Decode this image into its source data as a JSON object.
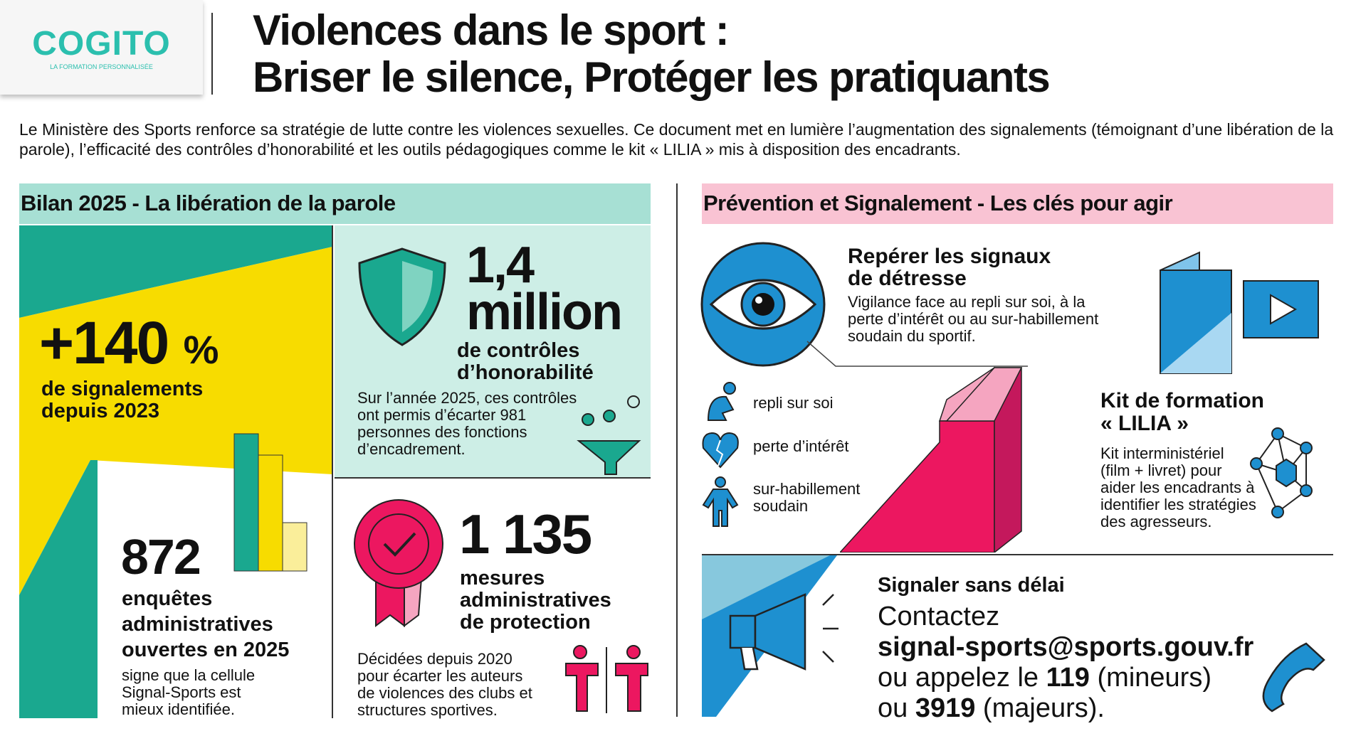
{
  "logo": {
    "name": "COGITO",
    "tagline": "LA FORMATION PERSONNALISÉE"
  },
  "header": {
    "title_line1": "Violences dans le sport :",
    "title_line2": "Briser le silence, Protéger les pratiquants",
    "intro": "Le Ministère des Sports renforce sa stratégie de lutte contre les violences sexuelles. Ce document met en lumière l’augmentation des signalements (témoignant d’une libération de la parole), l’efficacité des contrôles d’honorabilité et les outils pédagogiques comme le kit « LILIA » mis à disposition des encadrants."
  },
  "left": {
    "heading": "Bilan 2025 - La libération de la parole",
    "stat1": {
      "value": "+140",
      "unit": "%",
      "label1": "de signalements",
      "label2": "depuis 2023"
    },
    "stat2": {
      "value": "872",
      "l1": "enquêtes",
      "l2": "administratives",
      "l3": "ouvertes en 2025",
      "d1": "signe que la cellule",
      "d2": "Signal-Sports est",
      "d3": "mieux identifiée."
    },
    "stat3": {
      "v1": "1,4",
      "v2": "million",
      "l1": "de contrôles",
      "l2": "d’honorabilité",
      "d1": "Sur l’année 2025, ces contrôles",
      "d2": "ont permis d’écarter 981",
      "d3": "personnes des fonctions",
      "d4": "d’encadrement."
    },
    "stat4": {
      "value": "1 135",
      "l1": "mesures",
      "l2": "administratives",
      "l3": "de protection",
      "d1": "Décidées depuis 2020",
      "d2": "pour écarter les auteurs",
      "d3": "de violences des clubs et",
      "d4": "structures sportives."
    }
  },
  "right": {
    "heading": "Prévention et Signalement - Les clés pour agir",
    "signs": {
      "t1": "Repérer les signaux",
      "t2": "de détresse",
      "d1": "Vigilance face au repli sur soi, à la",
      "d2": "perte d’intérêt ou au sur-habillement",
      "d3": "soudain du sportif."
    },
    "items": [
      "repli sur soi",
      "perte d’intérêt",
      "sur-habillement",
      "soudain"
    ],
    "kit": {
      "t1": "Kit de formation",
      "t2": "« LILIA »",
      "d1": "Kit interministériel",
      "d2": "(film + livret) pour",
      "d3": "aider les encadrants à",
      "d4": "identifier les stratégies",
      "d5": "des agresseurs."
    },
    "report": {
      "title": "Signaler sans délai",
      "contact": "Contactez",
      "email": "signal-sports@sports.gouv.fr",
      "l1a": "ou appelez le ",
      "n1": "119",
      "l1b": " (mineurs)",
      "l2a": "ou ",
      "n2": "3919",
      "l2b": " (majeurs)."
    }
  },
  "colors": {
    "teal": "#1aa88f",
    "yellow": "#f7dc00",
    "lightteal": "#cdeee6",
    "pink": "#ec1760",
    "blue": "#1e90d0",
    "pinkhead": "#f9c3d3"
  }
}
